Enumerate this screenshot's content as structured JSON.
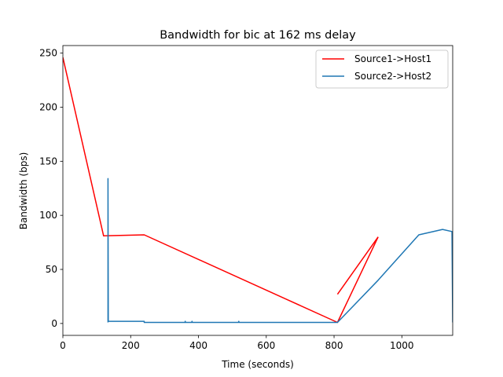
{
  "chart_data": {
    "type": "line",
    "title": "Bandwidth for bic at 162 ms delay",
    "xlabel": "Time (seconds)",
    "ylabel": "Bandwidth (bps)",
    "xlim": [
      0,
      1150
    ],
    "ylim": [
      -11,
      257
    ],
    "xticks": [
      0,
      200,
      400,
      600,
      800,
      1000
    ],
    "yticks": [
      0,
      50,
      100,
      150,
      200,
      250
    ],
    "grid": false,
    "legend_position": "upper right",
    "series": [
      {
        "name": "Source1->Host1",
        "color": "#ff0000",
        "segments": [
          [
            [
              0,
              246
            ],
            [
              120,
              81
            ],
            [
              240,
              82
            ],
            [
              810,
              1
            ],
            [
              930,
              80
            ]
          ],
          [
            [
              810,
              27
            ],
            [
              930,
              80
            ]
          ]
        ]
      },
      {
        "name": "Source2->Host2",
        "color": "#1f77b4",
        "segments": [
          [
            [
              133,
              1
            ],
            [
              133,
              134
            ],
            [
              134,
              2
            ],
            [
              240,
              2
            ],
            [
              240,
              1
            ],
            [
              360,
              1
            ],
            [
              361,
              2
            ],
            [
              362,
              1
            ],
            [
              380,
              1
            ],
            [
              381,
              2
            ],
            [
              382,
              1
            ],
            [
              518,
              1
            ],
            [
              519,
              2
            ],
            [
              520,
              1
            ],
            [
              810,
              1
            ],
            [
              930,
              40
            ],
            [
              1050,
              82
            ],
            [
              1120,
              87
            ],
            [
              1148,
              85
            ],
            [
              1150,
              1
            ]
          ]
        ]
      }
    ]
  }
}
